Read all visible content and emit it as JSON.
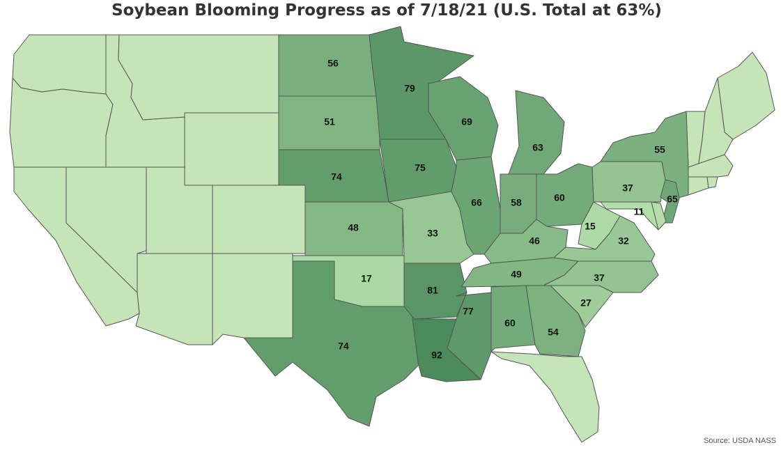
{
  "title": "Soybean Blooming Progress as of 7/18/21 (U.S. Total at 63%)",
  "source": "Source: USDA NASS",
  "colors": {
    "no_data": "#c5e4b8",
    "scale_low": "#b3deaa",
    "scale_high": "#4b8a5a",
    "stroke": "#555555"
  },
  "states": [
    {
      "code": "WA"
    },
    {
      "code": "OR"
    },
    {
      "code": "CA"
    },
    {
      "code": "NV"
    },
    {
      "code": "ID"
    },
    {
      "code": "MT"
    },
    {
      "code": "WY"
    },
    {
      "code": "UT"
    },
    {
      "code": "AZ"
    },
    {
      "code": "CO"
    },
    {
      "code": "NM"
    },
    {
      "code": "FL"
    },
    {
      "code": "ME"
    },
    {
      "code": "VT"
    },
    {
      "code": "NH"
    },
    {
      "code": "MA"
    },
    {
      "code": "CT"
    },
    {
      "code": "RI"
    },
    {
      "code": "ND",
      "value": 56
    },
    {
      "code": "SD",
      "value": 51
    },
    {
      "code": "NE",
      "value": 74
    },
    {
      "code": "KS",
      "value": 48
    },
    {
      "code": "OK",
      "value": 17
    },
    {
      "code": "TX",
      "value": 74
    },
    {
      "code": "MN",
      "value": 79
    },
    {
      "code": "IA",
      "value": 75
    },
    {
      "code": "MO",
      "value": 33
    },
    {
      "code": "AR",
      "value": 81
    },
    {
      "code": "LA",
      "value": 92
    },
    {
      "code": "WI",
      "value": 69
    },
    {
      "code": "IL",
      "value": 66
    },
    {
      "code": "MS",
      "value": 77
    },
    {
      "code": "MI",
      "value": 63
    },
    {
      "code": "IN",
      "value": 58
    },
    {
      "code": "KY",
      "value": 46
    },
    {
      "code": "TN",
      "value": 49
    },
    {
      "code": "AL",
      "value": 60
    },
    {
      "code": "OH",
      "value": 60
    },
    {
      "code": "GA",
      "value": 54
    },
    {
      "code": "WV",
      "value": 15
    },
    {
      "code": "VA",
      "value": 32
    },
    {
      "code": "NC",
      "value": 37
    },
    {
      "code": "SC",
      "value": 27
    },
    {
      "code": "PA",
      "value": 37
    },
    {
      "code": "NY",
      "value": 55
    },
    {
      "code": "NJ",
      "value": 65
    },
    {
      "code": "MD",
      "value": 11
    },
    {
      "code": "DE",
      "value": 11
    }
  ]
}
